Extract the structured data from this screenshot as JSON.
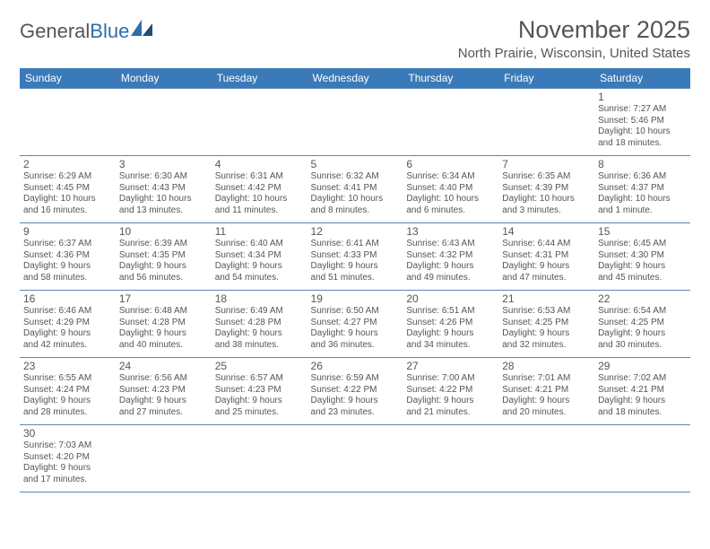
{
  "logo": {
    "text_general": "General",
    "text_blue": "Blue"
  },
  "title": "November 2025",
  "location": "North Prairie, Wisconsin, United States",
  "colors": {
    "header_bg": "#3a7ab8",
    "header_text": "#ffffff",
    "border": "#5a88b5",
    "text": "#555555",
    "logo_blue": "#2f6fa8",
    "background": "#ffffff"
  },
  "weekdays": [
    "Sunday",
    "Monday",
    "Tuesday",
    "Wednesday",
    "Thursday",
    "Friday",
    "Saturday"
  ],
  "cells": [
    [
      null,
      null,
      null,
      null,
      null,
      null,
      {
        "day": "1",
        "sunrise": "Sunrise: 7:27 AM",
        "sunset": "Sunset: 5:46 PM",
        "daylight1": "Daylight: 10 hours",
        "daylight2": "and 18 minutes."
      }
    ],
    [
      {
        "day": "2",
        "sunrise": "Sunrise: 6:29 AM",
        "sunset": "Sunset: 4:45 PM",
        "daylight1": "Daylight: 10 hours",
        "daylight2": "and 16 minutes."
      },
      {
        "day": "3",
        "sunrise": "Sunrise: 6:30 AM",
        "sunset": "Sunset: 4:43 PM",
        "daylight1": "Daylight: 10 hours",
        "daylight2": "and 13 minutes."
      },
      {
        "day": "4",
        "sunrise": "Sunrise: 6:31 AM",
        "sunset": "Sunset: 4:42 PM",
        "daylight1": "Daylight: 10 hours",
        "daylight2": "and 11 minutes."
      },
      {
        "day": "5",
        "sunrise": "Sunrise: 6:32 AM",
        "sunset": "Sunset: 4:41 PM",
        "daylight1": "Daylight: 10 hours",
        "daylight2": "and 8 minutes."
      },
      {
        "day": "6",
        "sunrise": "Sunrise: 6:34 AM",
        "sunset": "Sunset: 4:40 PM",
        "daylight1": "Daylight: 10 hours",
        "daylight2": "and 6 minutes."
      },
      {
        "day": "7",
        "sunrise": "Sunrise: 6:35 AM",
        "sunset": "Sunset: 4:39 PM",
        "daylight1": "Daylight: 10 hours",
        "daylight2": "and 3 minutes."
      },
      {
        "day": "8",
        "sunrise": "Sunrise: 6:36 AM",
        "sunset": "Sunset: 4:37 PM",
        "daylight1": "Daylight: 10 hours",
        "daylight2": "and 1 minute."
      }
    ],
    [
      {
        "day": "9",
        "sunrise": "Sunrise: 6:37 AM",
        "sunset": "Sunset: 4:36 PM",
        "daylight1": "Daylight: 9 hours",
        "daylight2": "and 58 minutes."
      },
      {
        "day": "10",
        "sunrise": "Sunrise: 6:39 AM",
        "sunset": "Sunset: 4:35 PM",
        "daylight1": "Daylight: 9 hours",
        "daylight2": "and 56 minutes."
      },
      {
        "day": "11",
        "sunrise": "Sunrise: 6:40 AM",
        "sunset": "Sunset: 4:34 PM",
        "daylight1": "Daylight: 9 hours",
        "daylight2": "and 54 minutes."
      },
      {
        "day": "12",
        "sunrise": "Sunrise: 6:41 AM",
        "sunset": "Sunset: 4:33 PM",
        "daylight1": "Daylight: 9 hours",
        "daylight2": "and 51 minutes."
      },
      {
        "day": "13",
        "sunrise": "Sunrise: 6:43 AM",
        "sunset": "Sunset: 4:32 PM",
        "daylight1": "Daylight: 9 hours",
        "daylight2": "and 49 minutes."
      },
      {
        "day": "14",
        "sunrise": "Sunrise: 6:44 AM",
        "sunset": "Sunset: 4:31 PM",
        "daylight1": "Daylight: 9 hours",
        "daylight2": "and 47 minutes."
      },
      {
        "day": "15",
        "sunrise": "Sunrise: 6:45 AM",
        "sunset": "Sunset: 4:30 PM",
        "daylight1": "Daylight: 9 hours",
        "daylight2": "and 45 minutes."
      }
    ],
    [
      {
        "day": "16",
        "sunrise": "Sunrise: 6:46 AM",
        "sunset": "Sunset: 4:29 PM",
        "daylight1": "Daylight: 9 hours",
        "daylight2": "and 42 minutes."
      },
      {
        "day": "17",
        "sunrise": "Sunrise: 6:48 AM",
        "sunset": "Sunset: 4:28 PM",
        "daylight1": "Daylight: 9 hours",
        "daylight2": "and 40 minutes."
      },
      {
        "day": "18",
        "sunrise": "Sunrise: 6:49 AM",
        "sunset": "Sunset: 4:28 PM",
        "daylight1": "Daylight: 9 hours",
        "daylight2": "and 38 minutes."
      },
      {
        "day": "19",
        "sunrise": "Sunrise: 6:50 AM",
        "sunset": "Sunset: 4:27 PM",
        "daylight1": "Daylight: 9 hours",
        "daylight2": "and 36 minutes."
      },
      {
        "day": "20",
        "sunrise": "Sunrise: 6:51 AM",
        "sunset": "Sunset: 4:26 PM",
        "daylight1": "Daylight: 9 hours",
        "daylight2": "and 34 minutes."
      },
      {
        "day": "21",
        "sunrise": "Sunrise: 6:53 AM",
        "sunset": "Sunset: 4:25 PM",
        "daylight1": "Daylight: 9 hours",
        "daylight2": "and 32 minutes."
      },
      {
        "day": "22",
        "sunrise": "Sunrise: 6:54 AM",
        "sunset": "Sunset: 4:25 PM",
        "daylight1": "Daylight: 9 hours",
        "daylight2": "and 30 minutes."
      }
    ],
    [
      {
        "day": "23",
        "sunrise": "Sunrise: 6:55 AM",
        "sunset": "Sunset: 4:24 PM",
        "daylight1": "Daylight: 9 hours",
        "daylight2": "and 28 minutes."
      },
      {
        "day": "24",
        "sunrise": "Sunrise: 6:56 AM",
        "sunset": "Sunset: 4:23 PM",
        "daylight1": "Daylight: 9 hours",
        "daylight2": "and 27 minutes."
      },
      {
        "day": "25",
        "sunrise": "Sunrise: 6:57 AM",
        "sunset": "Sunset: 4:23 PM",
        "daylight1": "Daylight: 9 hours",
        "daylight2": "and 25 minutes."
      },
      {
        "day": "26",
        "sunrise": "Sunrise: 6:59 AM",
        "sunset": "Sunset: 4:22 PM",
        "daylight1": "Daylight: 9 hours",
        "daylight2": "and 23 minutes."
      },
      {
        "day": "27",
        "sunrise": "Sunrise: 7:00 AM",
        "sunset": "Sunset: 4:22 PM",
        "daylight1": "Daylight: 9 hours",
        "daylight2": "and 21 minutes."
      },
      {
        "day": "28",
        "sunrise": "Sunrise: 7:01 AM",
        "sunset": "Sunset: 4:21 PM",
        "daylight1": "Daylight: 9 hours",
        "daylight2": "and 20 minutes."
      },
      {
        "day": "29",
        "sunrise": "Sunrise: 7:02 AM",
        "sunset": "Sunset: 4:21 PM",
        "daylight1": "Daylight: 9 hours",
        "daylight2": "and 18 minutes."
      }
    ],
    [
      {
        "day": "30",
        "sunrise": "Sunrise: 7:03 AM",
        "sunset": "Sunset: 4:20 PM",
        "daylight1": "Daylight: 9 hours",
        "daylight2": "and 17 minutes."
      },
      null,
      null,
      null,
      null,
      null,
      null
    ]
  ]
}
